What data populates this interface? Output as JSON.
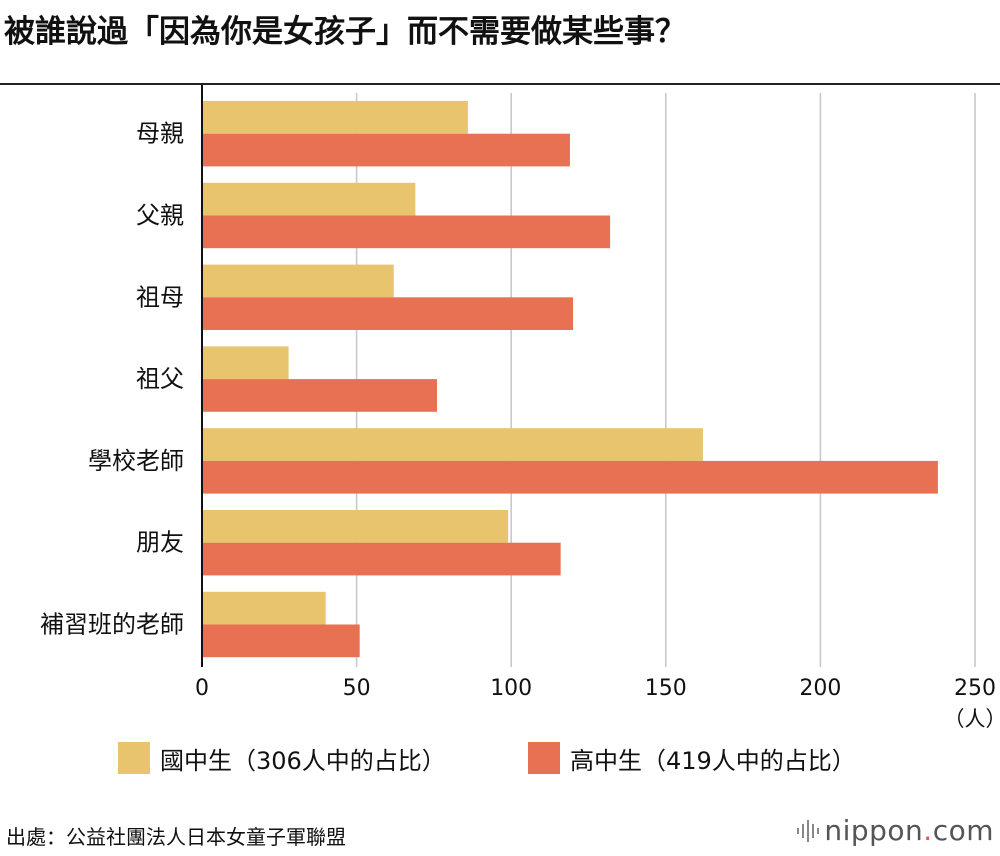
{
  "title": "被誰說過「因為你是女孩子」而不需要做某些事？",
  "chart_data": {
    "type": "bar",
    "orientation": "horizontal",
    "title": "被誰說過「因為你是女孩子」而不需要做某些事？",
    "categories": [
      "母親",
      "父親",
      "祖母",
      "祖父",
      "學校老師",
      "朋友",
      "補習班的老師"
    ],
    "series": [
      {
        "name": "國中生（306人中的占比）",
        "color": "#e8c46c",
        "values": [
          86,
          69,
          62,
          28,
          162,
          99,
          40
        ]
      },
      {
        "name": "高中生（419人中的占比）",
        "color": "#e87154",
        "values": [
          119,
          132,
          120,
          76,
          238,
          116,
          51
        ]
      }
    ],
    "xlim": [
      0,
      250
    ],
    "xticks": [
      "0",
      "50",
      "100",
      "150",
      "200",
      "250"
    ],
    "xunit": "（人）",
    "grid": true,
    "legend_position": "bottom"
  },
  "source": "出處：公益社團法人日本女童子軍聯盟",
  "brand": {
    "name": "nippon",
    "dot": ".",
    "tld": "com"
  }
}
